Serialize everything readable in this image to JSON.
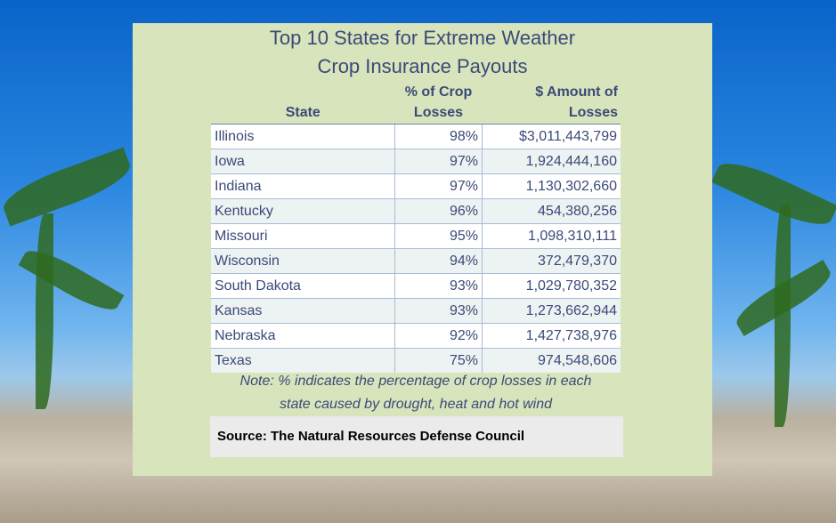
{
  "title_line1": "Top 10 States for Extreme Weather",
  "title_line2": "Crop Insurance Payouts",
  "headers": {
    "state": "State",
    "pct_line1": "% of Crop",
    "pct_line2": "Losses",
    "amt_line1": "$ Amount of",
    "amt_line2": "Losses"
  },
  "rows": [
    {
      "state": "Illinois",
      "pct": "98%",
      "amount": "$3,011,443,799"
    },
    {
      "state": "Iowa",
      "pct": "97%",
      "amount": "1,924,444,160"
    },
    {
      "state": "Indiana",
      "pct": "97%",
      "amount": "1,130,302,660"
    },
    {
      "state": "Kentucky",
      "pct": "96%",
      "amount": "454,380,256"
    },
    {
      "state": "Missouri",
      "pct": "95%",
      "amount": "1,098,310,111"
    },
    {
      "state": "Wisconsin",
      "pct": "94%",
      "amount": "372,479,370"
    },
    {
      "state": "South Dakota",
      "pct": "93%",
      "amount": "1,029,780,352"
    },
    {
      "state": "Kansas",
      "pct": "93%",
      "amount": "1,273,662,944"
    },
    {
      "state": "Nebraska",
      "pct": "92%",
      "amount": "1,427,738,976"
    },
    {
      "state": "Texas",
      "pct": "75%",
      "amount": "974,548,606"
    }
  ],
  "note_line1": "Note: % indicates the percentage of crop losses in each",
  "note_line2": "state caused by drought, heat and hot wind",
  "source": "Source: The Natural Resources Defense Council",
  "colors": {
    "panel": "#d8e4bc",
    "text": "#3b4a78",
    "row_alt": "#edf2f2",
    "source_bg": "#ebebeb"
  }
}
